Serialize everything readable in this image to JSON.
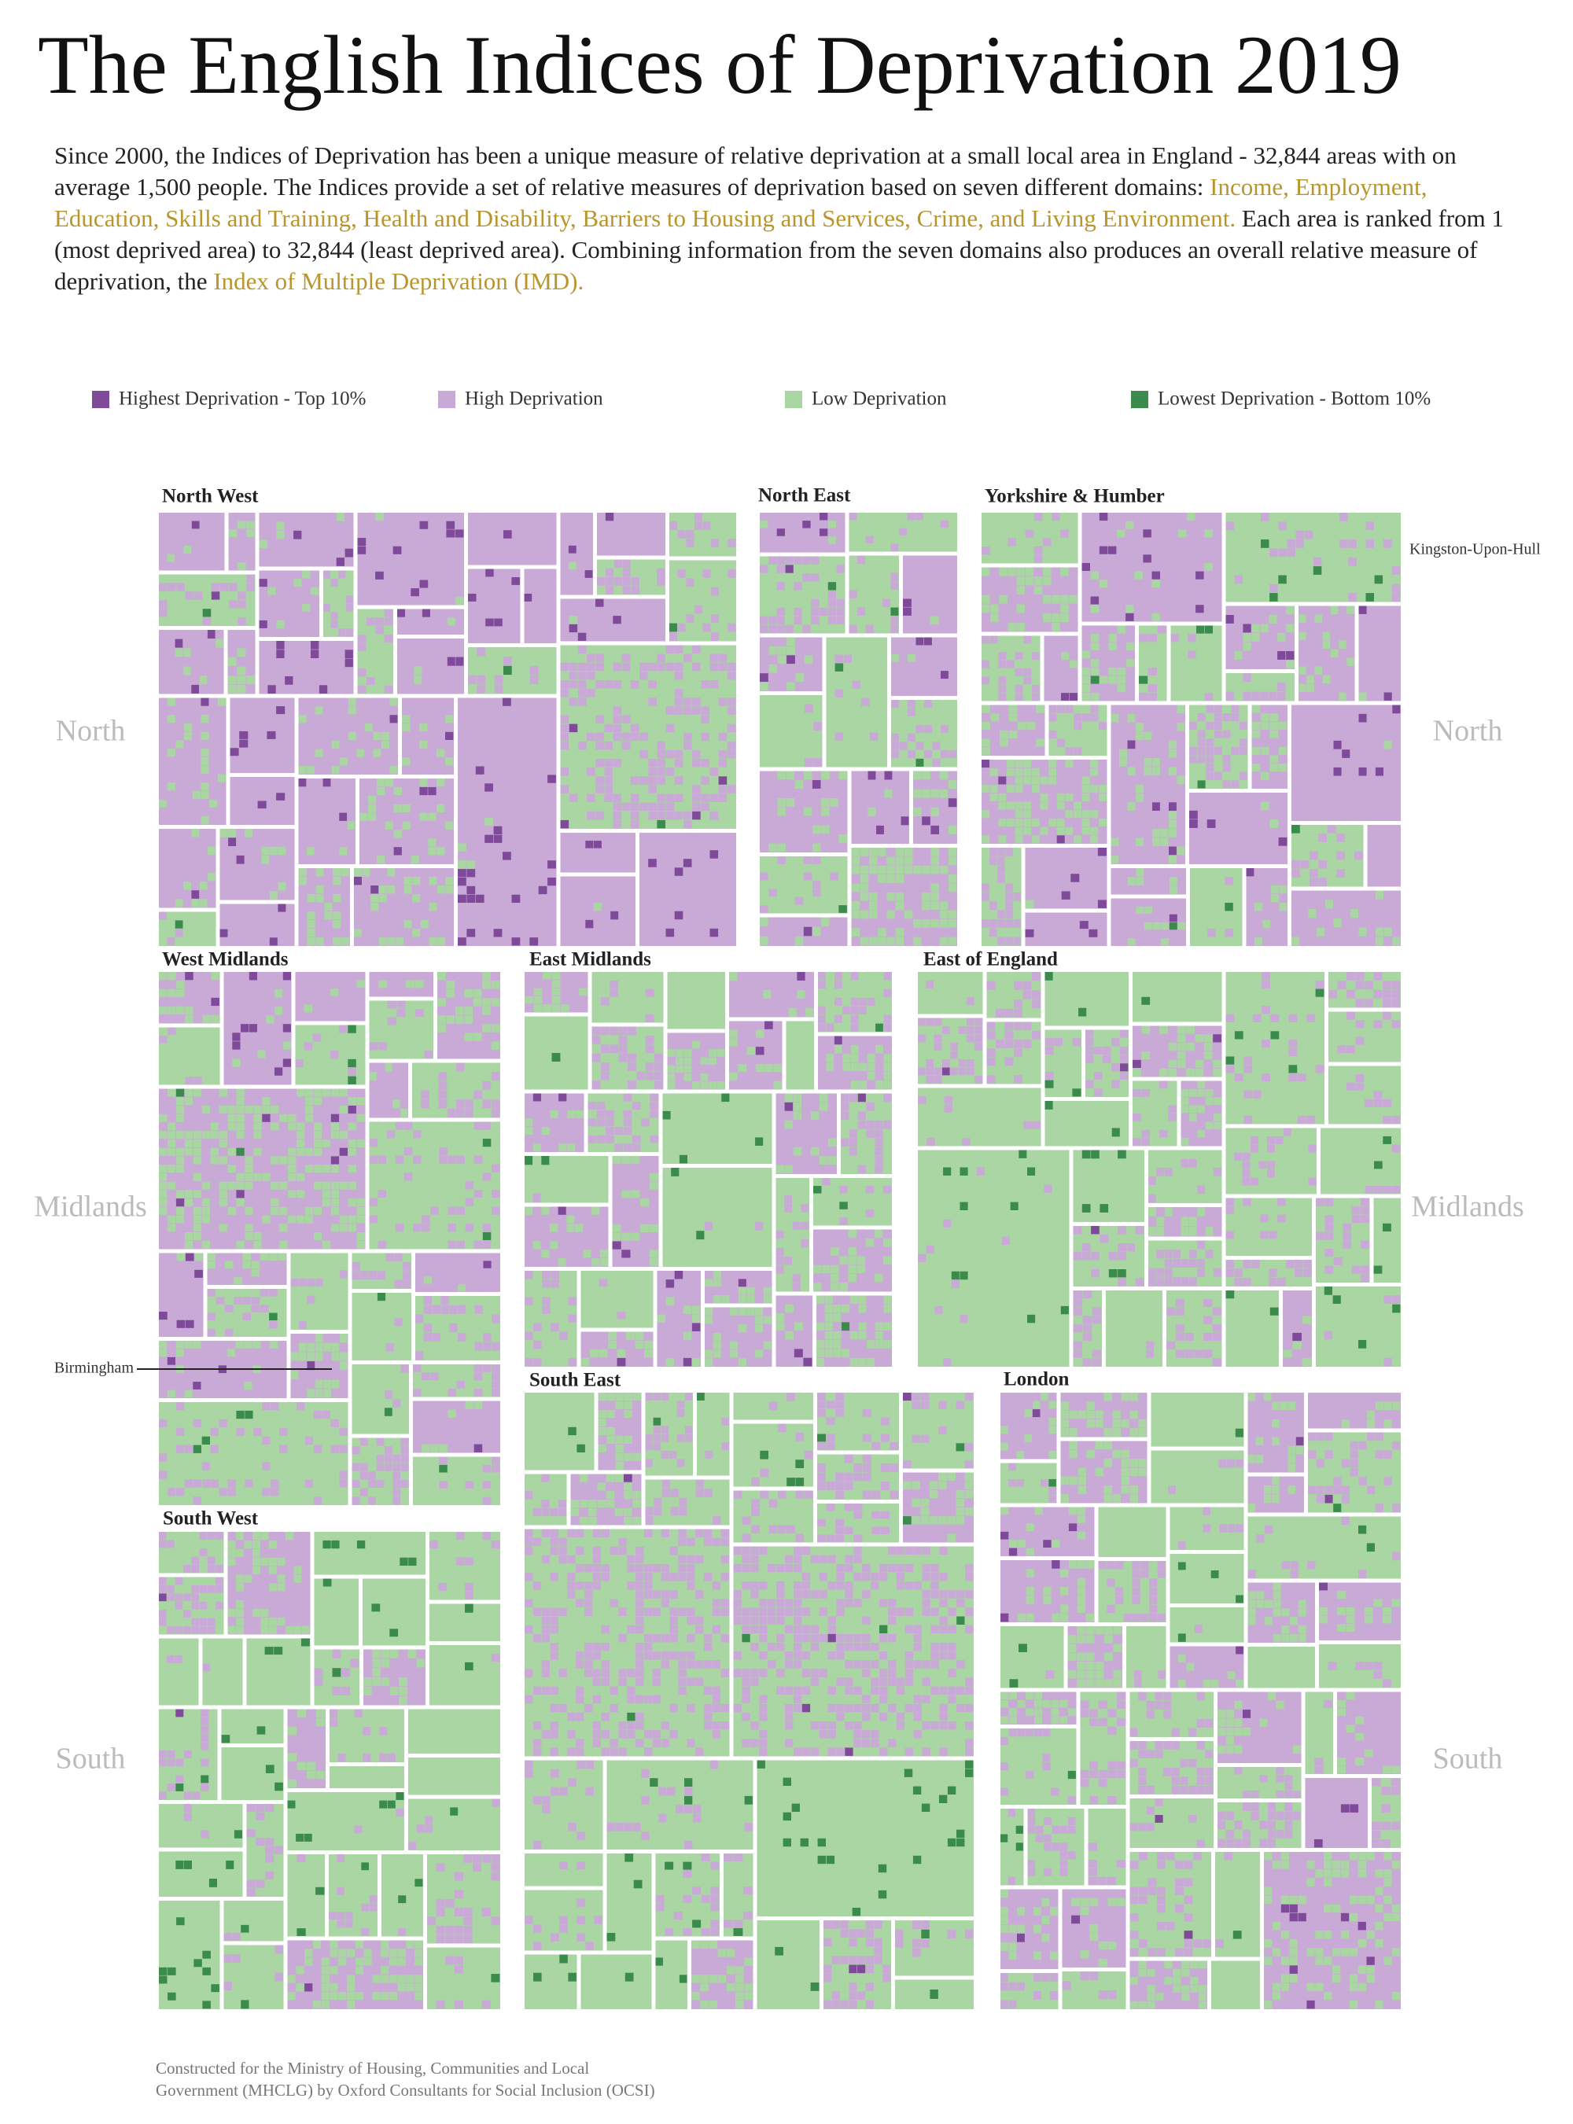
{
  "header": {
    "title": "The English Indices of Deprivation 2019",
    "highlight_color": "#b8962e",
    "intro": [
      {
        "text": "Since 2000, the Indices of Deprivation has been a unique measure of relative deprivation at a small local area in England - 32,844 areas with on average 1,500 people.  The Indices provide a set of relative measures of deprivation based on seven different domains:  ",
        "highlight": false
      },
      {
        "text": "Income, Employment, Education, Skills and Training, Health and Disability, Barriers to Housing and Services, Crime, and Living Environment.",
        "highlight": true
      },
      {
        "text": " Each area is ranked from 1 (most deprived area) to 32,844 (least deprived area). Combining information from the seven domains also produces an overall relative measure of deprivation, the ",
        "highlight": false
      },
      {
        "text": "Index of Multiple Deprivation (IMD).",
        "highlight": true
      }
    ]
  },
  "legend": [
    {
      "label": "Highest Deprivation - Top 10%",
      "color": "#7f4a9a"
    },
    {
      "label": "High Deprivation",
      "color": "#c9a9d6"
    },
    {
      "label": "Low Deprivation",
      "color": "#a9d6a2"
    },
    {
      "label": "Lowest Deprivation - Bottom 10%",
      "color": "#3b8b4c"
    }
  ],
  "regions": [
    "North West",
    "North East",
    "Yorkshire & Humber",
    "West Midlands",
    "East Midlands",
    "East of England",
    "South East",
    "London",
    "South West"
  ],
  "side_labels": {
    "left": [
      "North",
      "Midlands",
      "South"
    ],
    "right": [
      "North",
      "Midlands",
      "South"
    ]
  },
  "annotations": [
    "Kingston-Upon-Hull",
    "Birmingham"
  ],
  "footer": [
    "Constructed for the Ministry of Housing, Communities and Local",
    "Government (MHCLG) by Oxford Consultants for Social Inclusion (OCSI)"
  ]
}
